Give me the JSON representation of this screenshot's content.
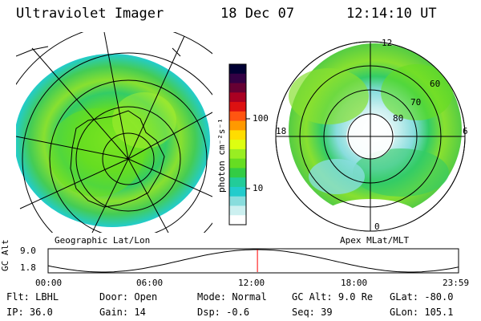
{
  "header": {
    "instrument": "Ultraviolet Imager",
    "date": "18 Dec 07",
    "time": "12:14:10 UT"
  },
  "colorbar": {
    "unit_label": "photon cm⁻²s⁻¹",
    "ticks": [
      "100",
      "10"
    ],
    "colors": [
      "#000033",
      "#330044",
      "#660033",
      "#aa0022",
      "#dd1111",
      "#ff5511",
      "#ff9900",
      "#ffdd00",
      "#ddff11",
      "#99ee22",
      "#66dd22",
      "#33cc44",
      "#22cc99",
      "#22cccc",
      "#88dddd",
      "#ccf0f0",
      "#ffffff"
    ]
  },
  "panels": {
    "left_caption": "Geographic Lat/Lon",
    "right_caption": "Apex MLat/MLT",
    "mlt_labels": {
      "top": "12",
      "left": "18",
      "right": "6",
      "bottom": "0"
    },
    "mlat_labels": [
      "60",
      "70",
      "80"
    ]
  },
  "altitude_plot": {
    "y_label": "GC Alt",
    "y_ticks": [
      "9.0",
      "1.8"
    ],
    "x_ticks": [
      "00:00",
      "06:00",
      "12:00",
      "18:00",
      "23:59"
    ],
    "current_marker_hour": 12.24
  },
  "info": {
    "row1": [
      {
        "label": "Flt:",
        "value": "LBHL"
      },
      {
        "label": "Door:",
        "value": "Open"
      },
      {
        "label": "Mode:",
        "value": "Normal"
      },
      {
        "label": "GC Alt:",
        "value": "9.0 Re"
      },
      {
        "label": "GLat:",
        "value": "-80.0"
      }
    ],
    "row2": [
      {
        "label": "IP:",
        "value": "36.0"
      },
      {
        "label": "Gain:",
        "value": "14"
      },
      {
        "label": "Dsp:",
        "value": "-0.6"
      },
      {
        "label": "Seq:",
        "value": "39"
      },
      {
        "label": "GLon:",
        "value": "105.1"
      }
    ]
  }
}
